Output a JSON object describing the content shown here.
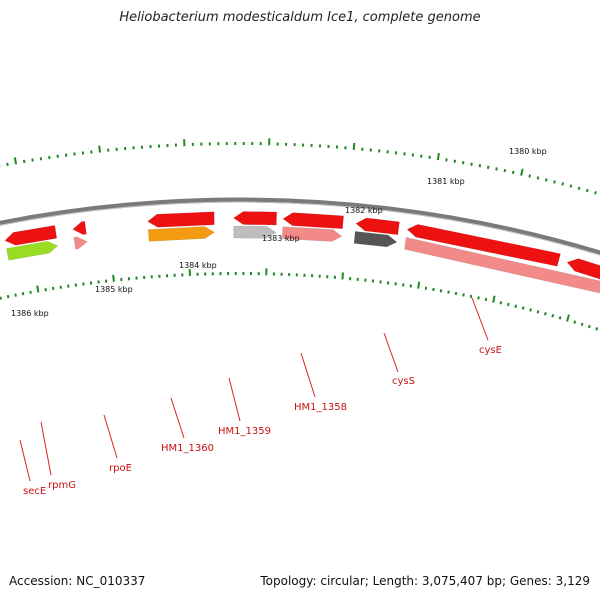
{
  "header": {
    "title": "Heliobacterium modesticaldum Ice1, complete genome"
  },
  "footer": {
    "accession": "Accession: NC_010337",
    "info": "Topology: circular; Length: 3,075,407 bp; Genes: 3,129"
  },
  "colors": {
    "backbone": "#7a7a7a",
    "gene_red": "#ee1111",
    "gene_pink": "#f28a8a",
    "gene_dark": "#555555",
    "gene_grey": "#bdbdbd",
    "gene_orange": "#f39c12",
    "gene_green": "#99dd22",
    "gene_blue": "#4a7fb5",
    "tick_green": "#228822",
    "label_red": "#cc1111",
    "leader_red": "#dd2222"
  },
  "ruler": {
    "unit": "kbp",
    "labels": [
      {
        "text": "1380 kbp"
      },
      {
        "text": "1381 kbp"
      },
      {
        "text": "1382 kbp"
      },
      {
        "text": "1383 kbp"
      },
      {
        "text": "1384 kbp"
      },
      {
        "text": "1385 kbp"
      },
      {
        "text": "1386 kbp"
      }
    ]
  },
  "gene_labels": [
    {
      "name": "cysE"
    },
    {
      "name": "cysS"
    },
    {
      "name": "HM1_1358"
    },
    {
      "name": "HM1_1359"
    },
    {
      "name": "HM1_1360"
    },
    {
      "name": "rpoE"
    },
    {
      "name": "rpmG"
    },
    {
      "name": "secE"
    }
  ]
}
